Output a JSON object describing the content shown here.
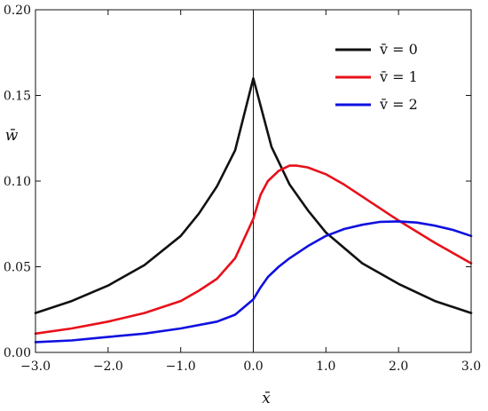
{
  "chart_data": {
    "type": "line",
    "xlabel": "x̄",
    "ylabel": "w̄",
    "xlim": [
      -3.0,
      3.0
    ],
    "ylim": [
      0.0,
      0.2
    ],
    "grid": false,
    "legend_position": "top-right",
    "x_ticks": [
      "−3.0",
      "−2.0",
      "−1.0",
      "0.0",
      "1.0",
      "2.0",
      "3.0"
    ],
    "x_tick_values": [
      -3,
      -2,
      -1,
      0,
      1,
      2,
      3
    ],
    "y_ticks": [
      "0.00",
      "0.05",
      "0.10",
      "0.15",
      "0.20"
    ],
    "y_tick_values": [
      0.0,
      0.05,
      0.1,
      0.15,
      0.2
    ],
    "series": [
      {
        "name": "v̄ = 0",
        "color": "#111111",
        "x": [
          -3.0,
          -2.5,
          -2.0,
          -1.5,
          -1.0,
          -0.75,
          -0.5,
          -0.25,
          0.0,
          0.25,
          0.5,
          0.75,
          1.0,
          1.5,
          2.0,
          2.5,
          3.0
        ],
        "y": [
          0.023,
          0.03,
          0.039,
          0.051,
          0.068,
          0.081,
          0.097,
          0.118,
          0.16,
          0.12,
          0.098,
          0.083,
          0.07,
          0.052,
          0.04,
          0.03,
          0.023
        ]
      },
      {
        "name": "v̄ = 1",
        "color": "#e8101a",
        "x": [
          -3.0,
          -2.5,
          -2.0,
          -1.5,
          -1.0,
          -0.75,
          -0.5,
          -0.25,
          0.0,
          0.1,
          0.2,
          0.35,
          0.5,
          0.6,
          0.75,
          1.0,
          1.25,
          1.5,
          2.0,
          2.5,
          3.0
        ],
        "y": [
          0.011,
          0.014,
          0.018,
          0.023,
          0.03,
          0.036,
          0.043,
          0.055,
          0.078,
          0.092,
          0.1,
          0.106,
          0.109,
          0.109,
          0.108,
          0.104,
          0.098,
          0.091,
          0.077,
          0.064,
          0.052
        ]
      },
      {
        "name": "v̄ = 2",
        "color": "#1010e0",
        "x": [
          -3.0,
          -2.5,
          -2.0,
          -1.5,
          -1.0,
          -0.5,
          -0.25,
          0.0,
          0.1,
          0.2,
          0.35,
          0.5,
          0.75,
          1.0,
          1.25,
          1.5,
          1.75,
          2.0,
          2.25,
          2.5,
          2.75,
          3.0
        ],
        "y": [
          0.006,
          0.007,
          0.009,
          0.011,
          0.014,
          0.018,
          0.022,
          0.031,
          0.038,
          0.044,
          0.05,
          0.055,
          0.062,
          0.068,
          0.072,
          0.0745,
          0.0762,
          0.0765,
          0.0758,
          0.074,
          0.0715,
          0.068
        ]
      }
    ]
  }
}
